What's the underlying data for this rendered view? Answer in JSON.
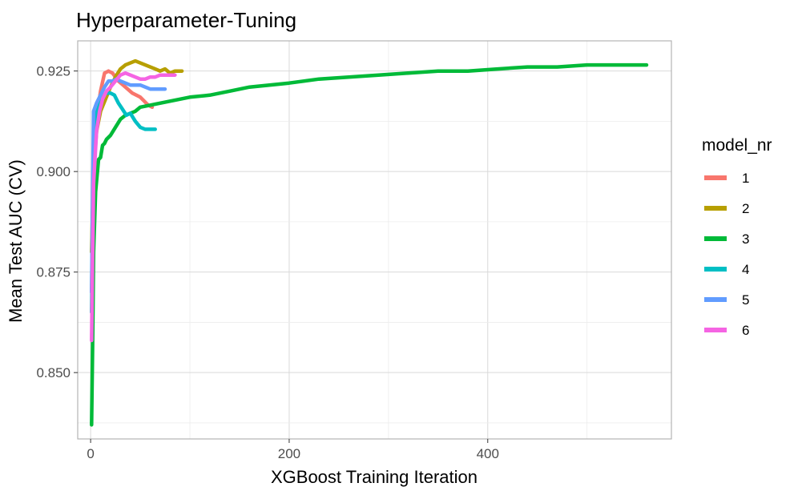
{
  "chart_data": {
    "type": "line",
    "title": "Hyperparameter-Tuning",
    "xlabel": "XGBoost Training Iteration",
    "ylabel": "Mean Test AUC (CV)",
    "xlim": [
      -13,
      585
    ],
    "ylim": [
      0.8335,
      0.9325
    ],
    "x_ticks": [
      0,
      200,
      400
    ],
    "y_ticks": [
      0.85,
      0.875,
      0.9,
      0.925
    ],
    "x_tick_labels": [
      "0",
      "200",
      "400"
    ],
    "y_tick_labels": [
      "0.850",
      "0.875",
      "0.900",
      "0.925"
    ],
    "grid": true,
    "legend": {
      "title": "model_nr",
      "position": "right"
    },
    "series": [
      {
        "name": "1",
        "color": "#F8766D",
        "x": [
          1,
          3,
          6,
          10,
          14,
          18,
          22,
          28,
          35,
          42,
          50,
          58,
          62
        ],
        "y": [
          0.87,
          0.9,
          0.913,
          0.92,
          0.9245,
          0.925,
          0.9245,
          0.9225,
          0.921,
          0.9195,
          0.9185,
          0.9165,
          0.916
        ]
      },
      {
        "name": "2",
        "color": "#B79F00",
        "x": [
          1,
          3,
          6,
          10,
          15,
          20,
          25,
          30,
          35,
          40,
          45,
          50,
          55,
          60,
          65,
          70,
          75,
          80,
          85,
          92
        ],
        "y": [
          0.88,
          0.9,
          0.91,
          0.915,
          0.918,
          0.921,
          0.9235,
          0.9255,
          0.9265,
          0.927,
          0.9275,
          0.927,
          0.9265,
          0.926,
          0.9255,
          0.925,
          0.9255,
          0.9245,
          0.925,
          0.925
        ]
      },
      {
        "name": "3",
        "color": "#00BA38",
        "x": [
          1,
          2,
          3,
          5,
          8,
          10,
          12,
          14,
          16,
          20,
          25,
          30,
          35,
          40,
          45,
          50,
          60,
          70,
          80,
          90,
          100,
          120,
          140,
          160,
          180,
          200,
          230,
          260,
          290,
          320,
          350,
          380,
          410,
          440,
          470,
          500,
          530,
          560
        ],
        "y": [
          0.837,
          0.857,
          0.88,
          0.895,
          0.903,
          0.9035,
          0.9065,
          0.907,
          0.908,
          0.909,
          0.911,
          0.913,
          0.914,
          0.9145,
          0.915,
          0.916,
          0.9165,
          0.917,
          0.9175,
          0.918,
          0.9185,
          0.919,
          0.92,
          0.921,
          0.9215,
          0.922,
          0.923,
          0.9235,
          0.924,
          0.9245,
          0.925,
          0.925,
          0.9255,
          0.926,
          0.926,
          0.9265,
          0.9265,
          0.9265
        ]
      },
      {
        "name": "4",
        "color": "#00BFC4",
        "x": [
          1,
          3,
          5,
          8,
          12,
          16,
          20,
          24,
          28,
          32,
          36,
          40,
          45,
          50,
          55,
          60,
          65
        ],
        "y": [
          0.865,
          0.905,
          0.913,
          0.917,
          0.919,
          0.9195,
          0.9195,
          0.919,
          0.917,
          0.9155,
          0.914,
          0.9145,
          0.9125,
          0.911,
          0.9105,
          0.9105,
          0.9105
        ]
      },
      {
        "name": "5",
        "color": "#619CFF",
        "x": [
          1,
          3,
          6,
          10,
          14,
          18,
          22,
          26,
          30,
          35,
          40,
          45,
          50,
          55,
          60,
          65,
          70,
          75
        ],
        "y": [
          0.87,
          0.915,
          0.917,
          0.919,
          0.921,
          0.9225,
          0.9225,
          0.923,
          0.9225,
          0.922,
          0.9215,
          0.9215,
          0.9215,
          0.921,
          0.9205,
          0.9205,
          0.9205,
          0.9205
        ]
      },
      {
        "name": "6",
        "color": "#F564E3",
        "x": [
          1,
          3,
          6,
          9,
          12,
          16,
          20,
          25,
          30,
          35,
          40,
          45,
          50,
          55,
          60,
          65,
          70,
          75,
          80,
          85
        ],
        "y": [
          0.858,
          0.897,
          0.91,
          0.915,
          0.918,
          0.92,
          0.921,
          0.9225,
          0.924,
          0.9245,
          0.924,
          0.9235,
          0.923,
          0.923,
          0.9235,
          0.9235,
          0.924,
          0.924,
          0.924,
          0.924
        ]
      }
    ]
  }
}
